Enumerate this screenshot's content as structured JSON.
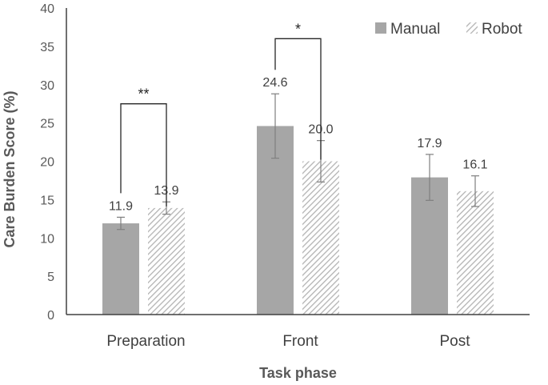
{
  "chart_data": {
    "type": "bar",
    "title": "",
    "xlabel": "Task phase",
    "ylabel": "Care Burden Score (%)",
    "ylim": [
      0,
      40
    ],
    "yticks": [
      0,
      5,
      10,
      15,
      20,
      25,
      30,
      35,
      40
    ],
    "categories": [
      "Preparation",
      "Front",
      "Post"
    ],
    "series": [
      {
        "name": "Manual",
        "values": [
          11.9,
          24.6,
          17.9
        ],
        "errors": [
          0.8,
          4.2,
          3.0
        ],
        "labels": [
          "11.9",
          "24.6",
          "17.9"
        ],
        "color": "#a6a6a6",
        "pattern": "solid"
      },
      {
        "name": "Robot",
        "values": [
          13.9,
          20.0,
          16.1
        ],
        "errors": [
          0.8,
          2.7,
          2.0
        ],
        "labels": [
          "13.9",
          "20.0",
          "16.1"
        ],
        "color": "#bfbfbf",
        "pattern": "hatched"
      }
    ],
    "significance": [
      {
        "category": "Preparation",
        "label": "**",
        "bracket_top": 27.5
      },
      {
        "category": "Front",
        "label": "*",
        "bracket_top": 36.0
      }
    ],
    "legend_position": "top-right",
    "grid": false
  }
}
